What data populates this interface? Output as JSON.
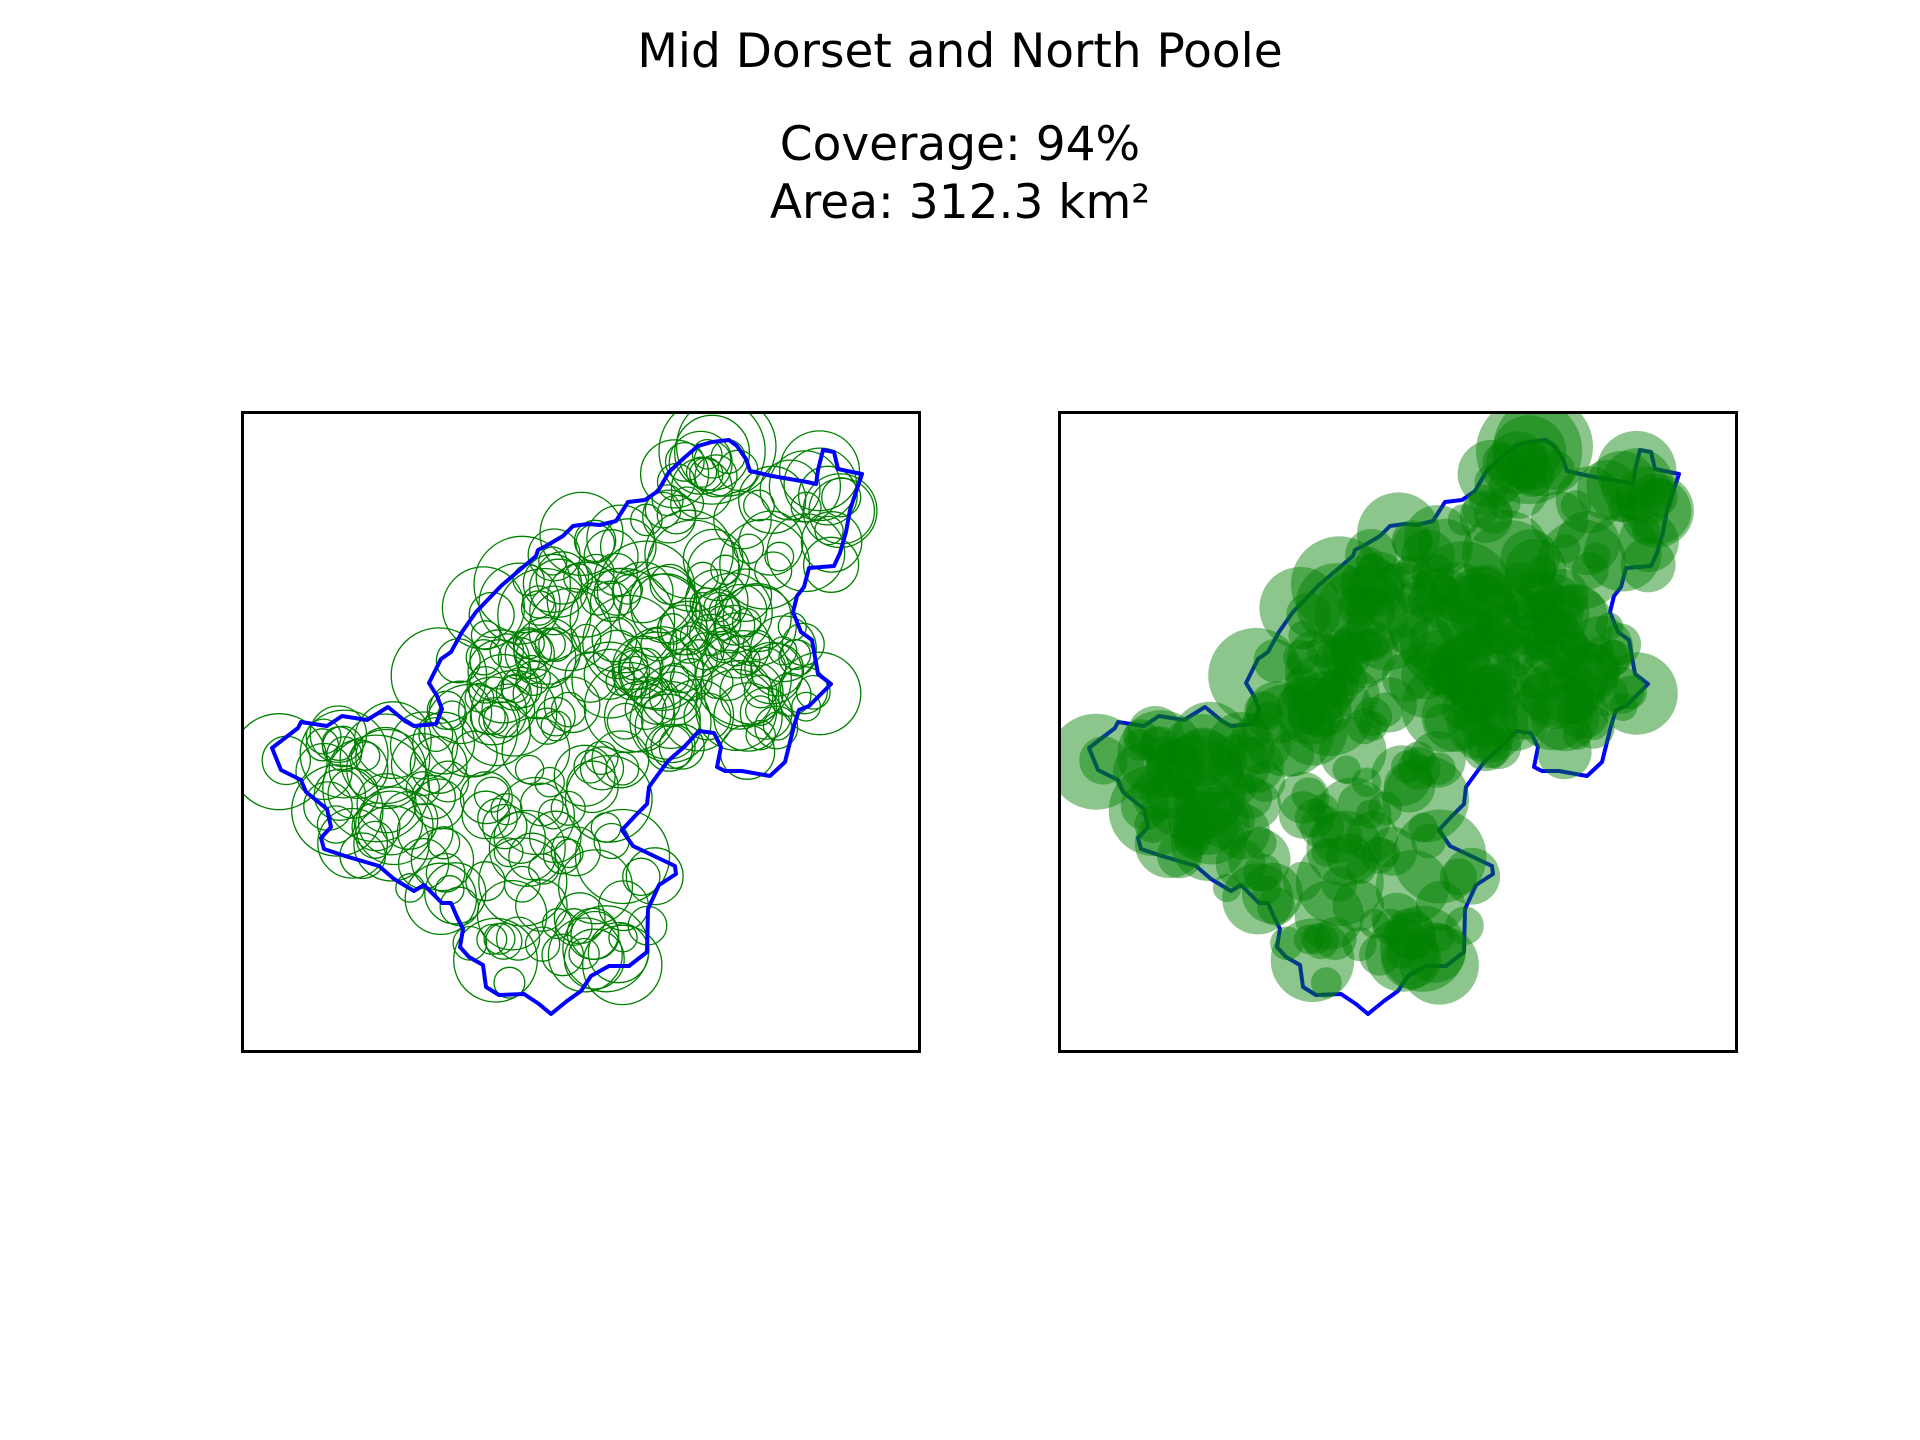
{
  "title": "Mid Dorset and North Poole",
  "coverage_text": "Coverage: 94%",
  "area_text": "Area: 312.3 km²",
  "panels": [
    {
      "name": "circle-outlines-map",
      "circle_style": "outline"
    },
    {
      "name": "filled-circles-map",
      "circle_style": "filled"
    }
  ],
  "colors": {
    "boundary": "#0000ff",
    "circles": "#008000",
    "frame": "#000000",
    "background": "#ffffff"
  }
}
